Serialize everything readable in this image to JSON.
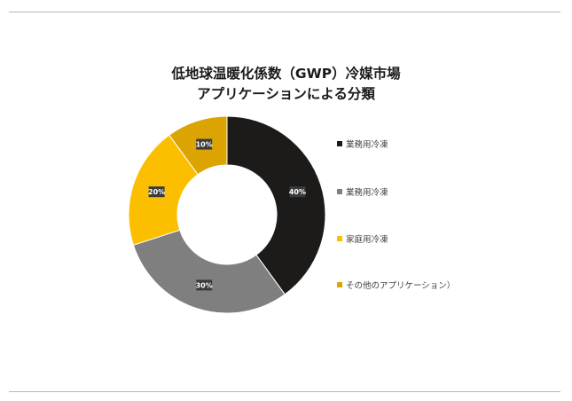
{
  "chart_data": {
    "type": "pie",
    "donut": true,
    "title_lines": [
      "低地球温暖化係数（GWP）冷媒市場",
      "アプリケーションによる分類"
    ],
    "categories": [
      "業務用冷凍",
      "業務用冷凍",
      "家庭用冷凍",
      "その他のアプリケーション）"
    ],
    "values": [
      40,
      30,
      20,
      10
    ],
    "value_labels": [
      "40%",
      "30%",
      "20%",
      "10%"
    ],
    "colors": [
      "#1d1a1a",
      "#7f7f7f",
      "#fcbf00",
      "#dba402"
    ],
    "legend_position": "right"
  }
}
